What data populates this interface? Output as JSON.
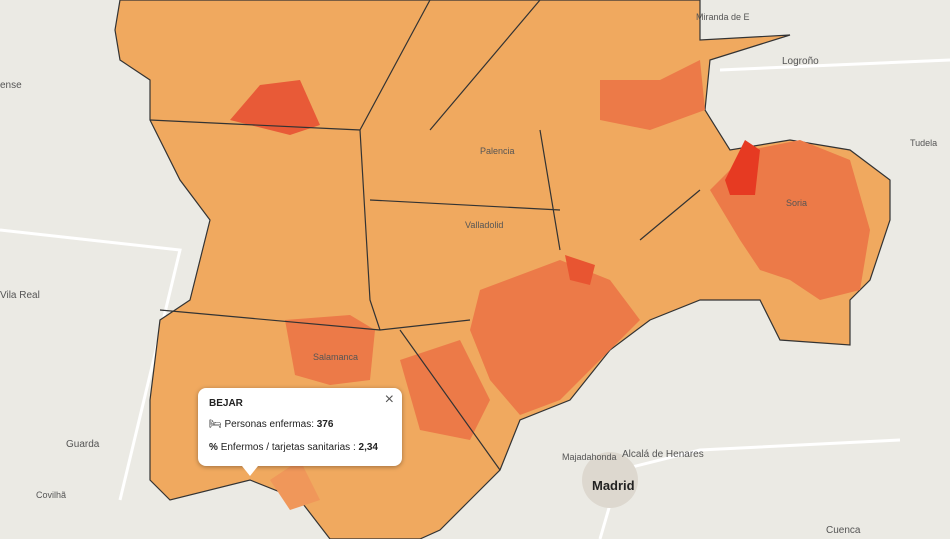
{
  "map_labels": [
    "ense",
    "Logroño",
    "Tudela",
    "Soria",
    "Vila Real",
    "Salamanca",
    "Valladolid",
    "Palencia",
    "Guarda",
    "Covilhã",
    "Majadahonda",
    "Alcalá de Henares",
    "Madrid",
    "Cuenca",
    "Miranda de E"
  ],
  "popup": {
    "title": "BEJAR",
    "rows": [
      {
        "label": "Personas enfermas: ",
        "value": "376"
      },
      {
        "label": "Enfermos / tarjetas sanitarias : ",
        "value": "2,34"
      }
    ],
    "close": "×"
  }
}
